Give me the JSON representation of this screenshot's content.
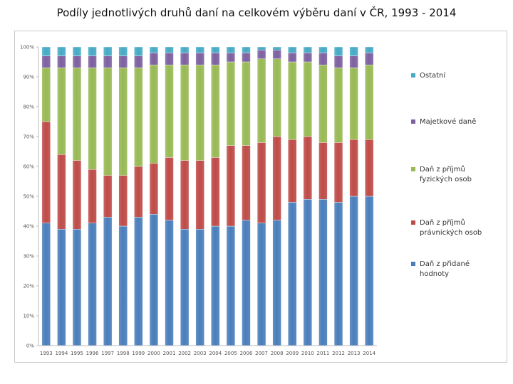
{
  "slide": {
    "title": "Podíly jednotlivých druhů daní na celkovém výběru daní v ČR, 1993 - 2014"
  },
  "chart_data": {
    "type": "bar",
    "stacked": true,
    "percent": true,
    "categories": [
      "1993",
      "1994",
      "1995",
      "1996",
      "1997",
      "1998",
      "1999",
      "2000",
      "2001",
      "2002",
      "2003",
      "2004",
      "2005",
      "2006",
      "2007",
      "2008",
      "2009",
      "2010",
      "2011",
      "2012",
      "2013",
      "2014"
    ],
    "series": [
      {
        "name": "Daň z přidané hodnoty",
        "color": "#4a7ebb",
        "values": [
          41,
          39,
          39,
          41,
          43,
          40,
          43,
          44,
          42,
          39,
          39,
          40,
          40,
          42,
          41,
          42,
          48,
          49,
          49,
          48,
          50,
          50
        ]
      },
      {
        "name": "Daň z příjmů právnických osob",
        "color": "#be4b48",
        "values": [
          34,
          25,
          23,
          18,
          14,
          17,
          17,
          17,
          21,
          23,
          23,
          23,
          27,
          25,
          27,
          28,
          21,
          21,
          19,
          20,
          19,
          19
        ]
      },
      {
        "name": "Daň z příjmů fyzických osob",
        "color": "#98b954",
        "values": [
          18,
          29,
          31,
          34,
          36,
          36,
          33,
          33,
          31,
          32,
          32,
          31,
          28,
          28,
          28,
          26,
          26,
          25,
          26,
          25,
          24,
          25
        ]
      },
      {
        "name": "Majetkové daně",
        "color": "#7d60a0",
        "values": [
          4,
          4,
          4,
          4,
          4,
          4,
          4,
          4,
          4,
          4,
          4,
          4,
          3,
          3,
          3,
          3,
          3,
          3,
          4,
          4,
          4,
          4
        ]
      },
      {
        "name": "Ostatní",
        "color": "#46aac5",
        "values": [
          3,
          3,
          3,
          3,
          3,
          3,
          3,
          2,
          2,
          2,
          2,
          2,
          2,
          2,
          1,
          1,
          2,
          2,
          2,
          3,
          3,
          2
        ]
      }
    ],
    "yticks": [
      "0%",
      "10%",
      "20%",
      "30%",
      "40%",
      "50%",
      "60%",
      "70%",
      "80%",
      "90%",
      "100%"
    ],
    "ylim": [
      0,
      100
    ],
    "legend_position": "right",
    "legend_order": [
      "Ostatní",
      "Majetkové daně",
      "Daň z příjmů fyzických osob",
      "Daň z příjmů právnických osob",
      "Daň z přidané hodnoty"
    ],
    "legend_lines": {
      "Ostatní": [
        "Ostatní"
      ],
      "Majetkové daně": [
        "Majetkové daně"
      ],
      "Daň z příjmů fyzických osob": [
        "Daň z příjmů",
        "fyzických osob"
      ],
      "Daň z příjmů právnických osob": [
        "Daň z příjmů",
        "právnických osob"
      ],
      "Daň z přidané hodnoty": [
        "Daň z přidané",
        "hodnoty"
      ]
    }
  }
}
